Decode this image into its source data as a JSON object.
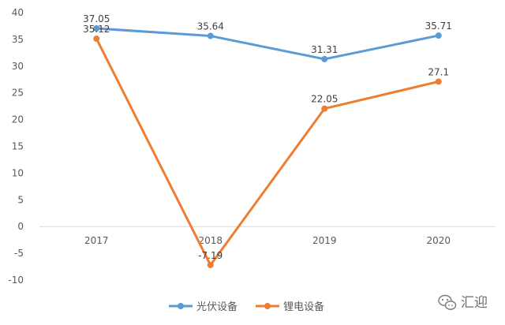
{
  "chart_data": {
    "type": "line",
    "categories": [
      "2017",
      "2018",
      "2019",
      "2020"
    ],
    "series": [
      {
        "name": "光伏设备",
        "values": [
          37.05,
          35.64,
          31.31,
          35.71
        ],
        "labels": [
          "37.05",
          "35.64",
          "31.31",
          "35.71"
        ],
        "color": "#5b9bd5"
      },
      {
        "name": "锂电设备",
        "values": [
          35.12,
          -7.19,
          22.05,
          27.1
        ],
        "labels": [
          "35.12",
          "-7.19",
          "22.05",
          "27.1"
        ],
        "color": "#ed7d31"
      }
    ],
    "ylim": [
      -10,
      40
    ],
    "yticks": [
      -10,
      -5,
      0,
      5,
      10,
      15,
      20,
      25,
      30,
      35,
      40
    ],
    "grid": false,
    "legend_position": "bottom"
  },
  "watermark": {
    "text": "汇迎",
    "icon": "wechat-icon"
  }
}
